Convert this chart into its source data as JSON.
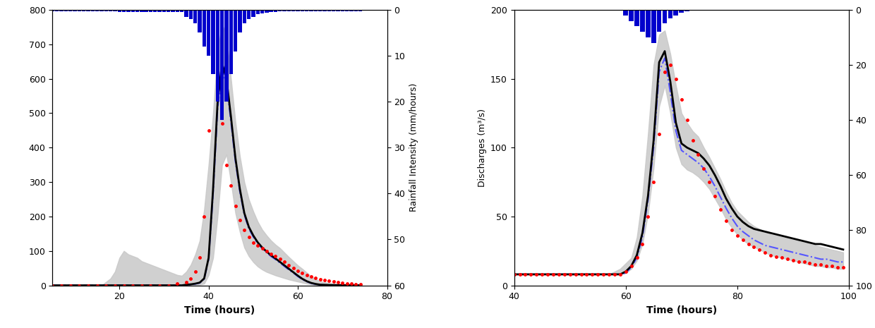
{
  "left": {
    "xlim": [
      5,
      80
    ],
    "ylim_left": [
      0,
      800
    ],
    "ylim_right": [
      60,
      0
    ],
    "xlabel": "Time (hours)",
    "ylabel_left": "",
    "ylabel_right": "Rainfall Intensity (mm/hours)",
    "xticks": [
      20,
      40,
      60,
      80
    ],
    "yticks_left": [
      0,
      100,
      200,
      300,
      400,
      500,
      600,
      700,
      800
    ],
    "yticks_right": [
      0,
      10,
      20,
      30,
      40,
      50,
      60
    ],
    "rain_x": [
      5,
      6,
      7,
      8,
      9,
      10,
      11,
      12,
      13,
      14,
      15,
      16,
      17,
      18,
      19,
      20,
      21,
      22,
      23,
      24,
      25,
      26,
      27,
      28,
      29,
      30,
      31,
      32,
      33,
      34,
      35,
      36,
      37,
      38,
      39,
      40,
      41,
      42,
      43,
      44,
      45,
      46,
      47,
      48,
      49,
      50,
      51,
      52,
      53,
      54,
      55,
      56,
      57,
      58,
      59,
      60,
      61,
      62,
      63,
      64,
      65,
      66,
      67,
      68,
      69,
      70,
      71,
      72,
      73,
      74
    ],
    "rain_vals": [
      0.3,
      0.3,
      0.3,
      0.3,
      0.3,
      0.3,
      0.3,
      0.3,
      0.3,
      0.3,
      0.3,
      0.3,
      0.3,
      0.3,
      0.3,
      0.5,
      0.5,
      0.5,
      0.5,
      0.5,
      0.5,
      0.5,
      0.5,
      0.5,
      0.5,
      0.5,
      0.5,
      0.5,
      0.5,
      0.5,
      1.5,
      2,
      3,
      5,
      8,
      10,
      14,
      20,
      24,
      20,
      14,
      9,
      5,
      3,
      2,
      1.5,
      1,
      0.8,
      0.6,
      0.5,
      0.4,
      0.3,
      0.3,
      0.3,
      0.3,
      0.3,
      0.3,
      0.3,
      0.3,
      0.3,
      0.3,
      0.3,
      0.3,
      0.3,
      0.3,
      0.3,
      0.3,
      0.3,
      0.3,
      0.3
    ],
    "t": [
      5,
      6,
      7,
      8,
      9,
      10,
      11,
      12,
      13,
      14,
      15,
      16,
      17,
      18,
      19,
      20,
      21,
      22,
      23,
      24,
      25,
      26,
      27,
      28,
      29,
      30,
      31,
      32,
      33,
      34,
      35,
      36,
      37,
      38,
      39,
      40,
      41,
      42,
      43,
      44,
      45,
      46,
      47,
      48,
      49,
      50,
      51,
      52,
      53,
      54,
      55,
      56,
      57,
      58,
      59,
      60,
      61,
      62,
      63,
      64,
      65,
      66,
      67,
      68,
      69,
      70,
      71,
      72,
      73,
      74
    ],
    "obs_x": [
      5,
      7,
      9,
      11,
      13,
      15,
      17,
      19,
      21,
      23,
      25,
      27,
      29,
      31,
      33,
      35,
      36,
      37,
      38,
      39,
      40,
      41,
      42,
      43,
      44,
      45,
      46,
      47,
      48,
      49,
      50,
      51,
      52,
      53,
      54,
      55,
      56,
      57,
      58,
      59,
      60,
      61,
      62,
      63,
      64,
      65,
      66,
      67,
      68,
      69,
      70,
      71,
      72,
      73,
      74
    ],
    "obs_y": [
      0,
      0,
      0,
      0,
      0,
      0,
      0,
      0,
      0,
      0,
      0,
      0,
      0,
      0,
      5,
      10,
      20,
      40,
      80,
      200,
      450,
      690,
      580,
      470,
      350,
      290,
      230,
      190,
      160,
      140,
      125,
      115,
      108,
      100,
      92,
      85,
      77,
      68,
      58,
      50,
      42,
      36,
      30,
      26,
      22,
      18,
      15,
      13,
      11,
      9,
      7,
      6,
      5,
      4,
      3
    ],
    "sim1_y": [
      0,
      0,
      0,
      0,
      0,
      0,
      0,
      0,
      0,
      0,
      0,
      0,
      0,
      0,
      0,
      0,
      0,
      0,
      0,
      0,
      0,
      0,
      0,
      0,
      0,
      0,
      0,
      0,
      0,
      0,
      2,
      3,
      5,
      8,
      20,
      80,
      280,
      530,
      645,
      600,
      490,
      370,
      280,
      210,
      170,
      145,
      125,
      110,
      98,
      87,
      78,
      68,
      58,
      48,
      38,
      28,
      19,
      12,
      7,
      4,
      2,
      1.5,
      1,
      0.8,
      0.6,
      0.5,
      0.4,
      0.3,
      0.2,
      0.15
    ],
    "sim2_y": [
      0,
      0,
      0,
      0,
      0,
      0,
      0,
      0,
      0,
      0,
      0,
      0,
      0,
      0,
      0,
      0,
      0,
      0,
      0,
      0,
      0,
      0,
      0,
      0,
      0,
      0,
      0,
      0,
      0,
      0,
      1,
      2,
      4,
      7,
      18,
      75,
      265,
      510,
      630,
      585,
      475,
      360,
      272,
      205,
      165,
      141,
      121,
      107,
      95,
      84,
      75,
      65,
      55,
      45,
      36,
      26,
      17,
      11,
      6,
      3,
      1.5,
      1.2,
      0.9,
      0.7,
      0.5,
      0.4,
      0.3,
      0.25,
      0.18,
      0.14
    ],
    "ci_lower": [
      0,
      0,
      0,
      0,
      0,
      0,
      0,
      0,
      0,
      0,
      0,
      0,
      0,
      0,
      0,
      0,
      0,
      0,
      0,
      0,
      0,
      0,
      0,
      0,
      0,
      0,
      0,
      0,
      0,
      0,
      0,
      0,
      1,
      2,
      5,
      30,
      80,
      200,
      350,
      380,
      300,
      210,
      155,
      110,
      85,
      68,
      55,
      46,
      39,
      34,
      29,
      25,
      21,
      17,
      14,
      11,
      8,
      5,
      3,
      1.5,
      0.8,
      0.5,
      0.3,
      0.2,
      0.15,
      0.1,
      0.08,
      0.06,
      0.04,
      0.03
    ],
    "ci_upper": [
      0,
      0,
      0,
      0,
      0,
      0,
      0,
      0,
      0,
      0,
      0,
      0,
      10,
      20,
      40,
      80,
      100,
      90,
      85,
      80,
      70,
      65,
      60,
      55,
      50,
      45,
      40,
      35,
      30,
      28,
      40,
      60,
      90,
      130,
      220,
      350,
      500,
      680,
      760,
      720,
      600,
      475,
      375,
      300,
      250,
      215,
      185,
      162,
      145,
      130,
      118,
      108,
      95,
      82,
      70,
      58,
      48,
      37,
      26,
      18,
      12,
      9,
      6.5,
      5,
      4,
      3.2,
      2.5,
      2,
      1.5,
      1.2
    ],
    "rain_color": "#0000cc",
    "obs_color": "red",
    "sim1_color": "#0000aa",
    "sim2_color": "#5555ff",
    "ci_color": "#c8c8c8"
  },
  "right": {
    "xlim": [
      40,
      100
    ],
    "ylim_left": [
      0,
      200
    ],
    "ylim_right": [
      100,
      0
    ],
    "xlabel": "Time (hours)",
    "ylabel_left": "Discharges (m³/s)",
    "ylabel_right": "Rainfall Intensity (mm/hours)",
    "xticks": [
      40,
      60,
      80,
      100
    ],
    "yticks_left": [
      0,
      50,
      100,
      150,
      200
    ],
    "yticks_right": [
      0,
      20,
      40,
      60,
      80,
      100
    ],
    "rain_x": [
      40,
      41,
      42,
      43,
      44,
      45,
      46,
      47,
      48,
      49,
      50,
      51,
      52,
      53,
      54,
      55,
      56,
      57,
      58,
      59,
      60,
      61,
      62,
      63,
      64,
      65,
      66,
      67,
      68,
      69,
      70,
      71,
      72,
      73,
      74,
      75,
      76,
      77,
      78,
      79,
      80,
      81,
      82,
      83,
      84,
      85,
      86,
      87,
      88,
      89,
      90,
      91,
      92,
      93,
      94,
      95,
      96,
      97,
      98,
      99
    ],
    "rain_vals": [
      0.2,
      0.2,
      0.2,
      0.2,
      0.2,
      0.2,
      0.2,
      0.2,
      0.2,
      0.2,
      0.2,
      0.2,
      0.2,
      0.2,
      0.2,
      0.2,
      0.2,
      0.2,
      0.2,
      0.2,
      2,
      4,
      6,
      8,
      10,
      12,
      8,
      5,
      3,
      2,
      1,
      0.5,
      0.3,
      0.3,
      0.3,
      0.3,
      0.3,
      0.3,
      0.3,
      0.3,
      0.3,
      0.2,
      0.2,
      0.2,
      0.2,
      0.2,
      0.2,
      0.2,
      0.2,
      0.2,
      0.2,
      0.2,
      0.2,
      0.2,
      0.2,
      0.2,
      0.2,
      0.2,
      0.2,
      0.2
    ],
    "t": [
      40,
      41,
      42,
      43,
      44,
      45,
      46,
      47,
      48,
      49,
      50,
      51,
      52,
      53,
      54,
      55,
      56,
      57,
      58,
      59,
      60,
      61,
      62,
      63,
      64,
      65,
      66,
      67,
      68,
      69,
      70,
      71,
      72,
      73,
      74,
      75,
      76,
      77,
      78,
      79,
      80,
      81,
      82,
      83,
      84,
      85,
      86,
      87,
      88,
      89,
      90,
      91,
      92,
      93,
      94,
      95,
      96,
      97,
      98,
      99
    ],
    "obs_x": [
      40,
      41,
      42,
      43,
      44,
      45,
      46,
      47,
      48,
      49,
      50,
      51,
      52,
      53,
      54,
      55,
      56,
      57,
      58,
      59,
      60,
      61,
      62,
      63,
      64,
      65,
      66,
      67,
      68,
      69,
      70,
      71,
      72,
      73,
      74,
      75,
      76,
      77,
      78,
      79,
      80,
      81,
      82,
      83,
      84,
      85,
      86,
      87,
      88,
      89,
      90,
      91,
      92,
      93,
      94,
      95,
      96,
      97,
      98,
      99
    ],
    "obs_y": [
      8,
      8,
      8,
      8,
      8,
      8,
      8,
      8,
      8,
      8,
      8,
      8,
      8,
      8,
      8,
      8,
      8,
      8,
      8,
      8,
      10,
      14,
      20,
      30,
      50,
      75,
      110,
      155,
      160,
      150,
      135,
      120,
      105,
      95,
      85,
      75,
      65,
      55,
      47,
      40,
      36,
      33,
      30,
      28,
      26,
      24,
      22,
      21,
      20,
      19,
      18,
      17,
      17,
      16,
      15,
      15,
      14,
      14,
      13,
      13
    ],
    "sim1_y": [
      8,
      8,
      8,
      8,
      8,
      8,
      8,
      8,
      8,
      8,
      8,
      8,
      8,
      8,
      8,
      8,
      8,
      8,
      8,
      8,
      10,
      14,
      22,
      38,
      65,
      105,
      162,
      170,
      148,
      118,
      103,
      100,
      98,
      96,
      92,
      87,
      80,
      72,
      63,
      56,
      50,
      46,
      43,
      41,
      40,
      39,
      38,
      37,
      36,
      35,
      34,
      33,
      32,
      31,
      30,
      30,
      29,
      28,
      27,
      26
    ],
    "sim2_y": [
      8,
      8,
      8,
      8,
      8,
      8,
      8,
      8,
      8,
      8,
      8,
      8,
      8,
      8,
      8,
      8,
      8,
      8,
      8,
      8,
      9,
      13,
      20,
      35,
      62,
      100,
      155,
      165,
      140,
      112,
      98,
      95,
      92,
      89,
      85,
      79,
      72,
      64,
      56,
      49,
      43,
      39,
      36,
      33,
      31,
      29,
      28,
      27,
      26,
      25,
      24,
      23,
      22,
      21,
      20,
      19,
      19,
      18,
      17,
      17
    ],
    "ci_lower": [
      8,
      8,
      8,
      8,
      8,
      8,
      8,
      8,
      8,
      8,
      8,
      8,
      8,
      8,
      8,
      8,
      8,
      8,
      8,
      8,
      9,
      12,
      18,
      30,
      52,
      85,
      130,
      145,
      125,
      100,
      88,
      84,
      82,
      79,
      75,
      70,
      63,
      56,
      48,
      42,
      37,
      33,
      30,
      28,
      26,
      24,
      22,
      21,
      20,
      19,
      18,
      17,
      16,
      15,
      14,
      14,
      13,
      13,
      12,
      12
    ],
    "ci_upper": [
      8,
      8,
      8,
      8,
      8,
      8,
      8,
      8,
      8,
      8,
      8,
      8,
      8,
      8,
      8,
      8,
      8,
      8,
      10,
      12,
      16,
      20,
      35,
      65,
      110,
      160,
      182,
      185,
      168,
      145,
      125,
      118,
      112,
      108,
      100,
      93,
      85,
      77,
      68,
      60,
      54,
      50,
      46,
      43,
      41,
      39,
      37,
      36,
      35,
      34,
      33,
      32,
      31,
      30,
      29,
      28,
      27,
      26,
      25,
      24
    ],
    "rain_color": "#0000cc",
    "obs_color": "red",
    "sim1_color": "#0000aa",
    "sim2_color": "#5555ff",
    "ci_color": "#c8c8c8"
  }
}
